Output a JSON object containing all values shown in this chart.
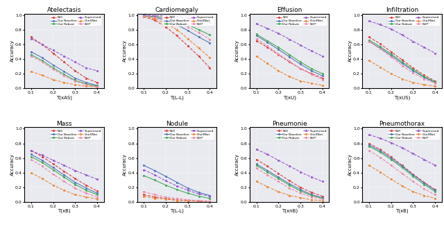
{
  "titles": [
    "Atelectasis",
    "Cardiomegaly",
    "Effusion",
    "Infiltration",
    "Mass",
    "Nodule",
    "Pneumonie",
    "Pneumothorax"
  ],
  "xlabels": [
    "T(xAS)",
    "T(L-L)",
    "T(xU)",
    "T(xUS)",
    "T(xB)",
    "T(L-L)",
    "T(xnB)",
    "T(xB)"
  ],
  "legend_labels": [
    "NIH",
    "Our Baseline",
    "Our Robust",
    "Supervised",
    "CheXNet",
    "NIH*"
  ],
  "line_styles": [
    {
      "color": "#d94040",
      "linestyle": "--",
      "linewidth": 0.8
    },
    {
      "color": "#5577bb",
      "linestyle": "-",
      "linewidth": 0.8
    },
    {
      "color": "#44aa55",
      "linestyle": "-",
      "linewidth": 0.8
    },
    {
      "color": "#9955cc",
      "linestyle": "--",
      "linewidth": 0.8
    },
    {
      "color": "#ee8833",
      "linestyle": "--",
      "linewidth": 0.8
    },
    {
      "color": "#ee88aa",
      "linestyle": "--",
      "linewidth": 0.8
    }
  ],
  "subplots": {
    "Atelectasis": {
      "NIH": [
        0.7,
        0.6,
        0.48,
        0.36,
        0.24,
        0.14,
        0.08
      ],
      "Our Baseline": [
        0.5,
        0.42,
        0.32,
        0.23,
        0.14,
        0.08,
        0.04
      ],
      "Our Robust": [
        0.46,
        0.38,
        0.28,
        0.19,
        0.11,
        0.06,
        0.03
      ],
      "Supervised": [
        0.68,
        0.6,
        0.52,
        0.44,
        0.36,
        0.28,
        0.24
      ],
      "CheXNet": [
        0.23,
        0.18,
        0.12,
        0.08,
        0.05,
        0.03,
        0.02
      ],
      "NIH*": [
        0.44,
        0.36,
        0.26,
        0.17,
        0.1,
        0.05,
        0.02
      ]
    },
    "Cardiomegaly": {
      "NIH": [
        0.98,
        0.93,
        0.84,
        0.72,
        0.58,
        0.44,
        0.28
      ],
      "Our Baseline": [
        0.99,
        0.97,
        0.93,
        0.87,
        0.79,
        0.7,
        0.62
      ],
      "Our Robust": [
        0.99,
        0.98,
        0.96,
        0.93,
        0.87,
        0.8,
        0.73
      ],
      "Supervised": [
        1.0,
        0.99,
        0.99,
        0.98,
        0.96,
        0.93,
        0.9
      ],
      "CheXNet": [
        0.98,
        0.95,
        0.89,
        0.8,
        0.68,
        0.55,
        0.42
      ],
      "NIH*": [
        0.99,
        0.97,
        0.95,
        0.91,
        0.84,
        0.76,
        0.67
      ]
    },
    "Effusion": {
      "NIH": [
        0.65,
        0.56,
        0.46,
        0.36,
        0.27,
        0.2,
        0.14
      ],
      "Our Baseline": [
        0.72,
        0.63,
        0.53,
        0.43,
        0.33,
        0.24,
        0.17
      ],
      "Our Robust": [
        0.74,
        0.65,
        0.56,
        0.46,
        0.36,
        0.27,
        0.2
      ],
      "Supervised": [
        0.88,
        0.82,
        0.75,
        0.67,
        0.59,
        0.51,
        0.44
      ],
      "CheXNet": [
        0.44,
        0.34,
        0.24,
        0.16,
        0.1,
        0.07,
        0.04
      ],
      "NIH*": [
        0.68,
        0.58,
        0.47,
        0.37,
        0.27,
        0.19,
        0.12
      ]
    },
    "Infiltration": {
      "NIH": [
        0.7,
        0.61,
        0.5,
        0.39,
        0.28,
        0.18,
        0.1
      ],
      "Our Baseline": [
        0.64,
        0.55,
        0.45,
        0.34,
        0.24,
        0.15,
        0.08
      ],
      "Our Robust": [
        0.66,
        0.57,
        0.47,
        0.36,
        0.26,
        0.16,
        0.09
      ],
      "Supervised": [
        0.92,
        0.87,
        0.81,
        0.73,
        0.64,
        0.56,
        0.48
      ],
      "CheXNet": [
        0.38,
        0.29,
        0.2,
        0.13,
        0.08,
        0.05,
        0.03
      ],
      "NIH*": [
        0.64,
        0.54,
        0.43,
        0.31,
        0.21,
        0.13,
        0.07
      ]
    },
    "Mass": {
      "NIH": [
        0.7,
        0.62,
        0.52,
        0.42,
        0.32,
        0.23,
        0.15
      ],
      "Our Baseline": [
        0.65,
        0.57,
        0.47,
        0.37,
        0.27,
        0.19,
        0.12
      ],
      "Our Robust": [
        0.62,
        0.54,
        0.44,
        0.34,
        0.24,
        0.16,
        0.1
      ],
      "Supervised": [
        0.7,
        0.64,
        0.57,
        0.5,
        0.43,
        0.37,
        0.31
      ],
      "CheXNet": [
        0.4,
        0.32,
        0.23,
        0.16,
        0.1,
        0.07,
        0.04
      ],
      "NIH*": [
        0.58,
        0.49,
        0.38,
        0.28,
        0.19,
        0.12,
        0.07
      ]
    },
    "Nodule": {
      "NIH": [
        0.1,
        0.07,
        0.05,
        0.03,
        0.02,
        0.01,
        0.01
      ],
      "Our Baseline": [
        0.5,
        0.43,
        0.35,
        0.27,
        0.19,
        0.13,
        0.09
      ],
      "Our Robust": [
        0.36,
        0.3,
        0.23,
        0.17,
        0.12,
        0.08,
        0.05
      ],
      "Supervised": [
        0.44,
        0.37,
        0.29,
        0.22,
        0.16,
        0.11,
        0.08
      ],
      "CheXNet": [
        0.08,
        0.05,
        0.04,
        0.02,
        0.02,
        0.01,
        0.01
      ],
      "NIH*": [
        0.14,
        0.1,
        0.07,
        0.05,
        0.03,
        0.02,
        0.01
      ]
    },
    "Pneumonie": {
      "NIH": [
        0.58,
        0.49,
        0.39,
        0.29,
        0.2,
        0.13,
        0.08
      ],
      "Our Baseline": [
        0.52,
        0.43,
        0.34,
        0.25,
        0.17,
        0.1,
        0.06
      ],
      "Our Robust": [
        0.5,
        0.41,
        0.32,
        0.23,
        0.15,
        0.09,
        0.05
      ],
      "Supervised": [
        0.72,
        0.65,
        0.57,
        0.49,
        0.41,
        0.34,
        0.28
      ],
      "CheXNet": [
        0.28,
        0.21,
        0.14,
        0.09,
        0.06,
        0.03,
        0.02
      ],
      "NIH*": [
        0.46,
        0.37,
        0.28,
        0.19,
        0.12,
        0.07,
        0.04
      ]
    },
    "Pneumothorax": {
      "NIH": [
        0.8,
        0.72,
        0.62,
        0.5,
        0.38,
        0.27,
        0.17
      ],
      "Our Baseline": [
        0.78,
        0.7,
        0.6,
        0.49,
        0.37,
        0.26,
        0.16
      ],
      "Our Robust": [
        0.76,
        0.68,
        0.58,
        0.47,
        0.35,
        0.24,
        0.14
      ],
      "Supervised": [
        0.92,
        0.87,
        0.81,
        0.74,
        0.66,
        0.58,
        0.5
      ],
      "CheXNet": [
        0.5,
        0.41,
        0.31,
        0.22,
        0.14,
        0.09,
        0.05
      ],
      "NIH*": [
        0.7,
        0.61,
        0.5,
        0.39,
        0.28,
        0.18,
        0.1
      ]
    }
  },
  "x_values": [
    0.1,
    0.15,
    0.2,
    0.25,
    0.3,
    0.35,
    0.4
  ],
  "x_ticks": [
    0.1,
    0.2,
    0.3,
    0.4
  ],
  "x_ticklabels": [
    "0.1",
    "0.2",
    "0.3",
    "0.4"
  ],
  "ylim": [
    0.0,
    1.02
  ],
  "yticks": [
    0.0,
    0.2,
    0.4,
    0.6,
    0.8,
    1.0
  ],
  "background_color": "#e8eaf0",
  "fig_background": "#ffffff",
  "marker": ".",
  "markersize": 2.5
}
